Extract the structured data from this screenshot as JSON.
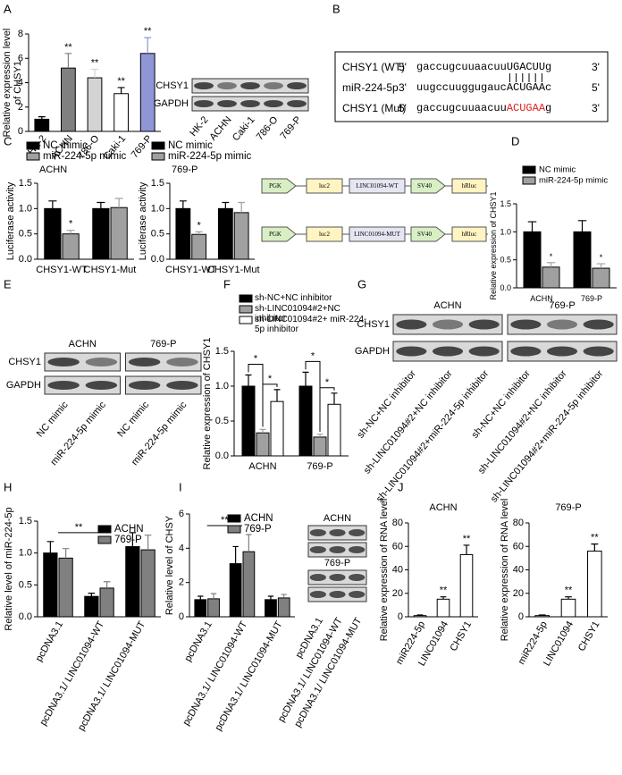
{
  "panel_labels": [
    "A",
    "B",
    "C",
    "D",
    "E",
    "F",
    "G",
    "H",
    "I",
    "J"
  ],
  "chart_data": [
    {
      "type": "bar",
      "ylabel": [
        "Relative expression level",
        "of CHSY1"
      ],
      "categories": [
        "HK-2",
        "ACHN",
        "786-O",
        "Caki-1",
        "769-P"
      ],
      "values": [
        1.0,
        5.2,
        4.4,
        3.1,
        6.4
      ],
      "errors": [
        0.2,
        1.2,
        0.7,
        0.5,
        1.3
      ],
      "colors": [
        "#000000",
        "#808080",
        "#d3d3d3",
        "#ffffff",
        "#8f96d8"
      ],
      "sig": [
        null,
        "**",
        "**",
        "**",
        "**"
      ],
      "ylim": [
        0,
        8
      ],
      "yticks": [
        0,
        2,
        4,
        6,
        8
      ]
    },
    {
      "type": "bar",
      "title": "ACHN",
      "ylabel": "Luciferase activity",
      "categories": [
        "CHSY1-WT",
        "CHSY1-Mut"
      ],
      "series": [
        {
          "name": "NC mimic",
          "color": "#000000",
          "values": [
            1.0,
            1.0
          ],
          "errors": [
            0.15,
            0.12
          ]
        },
        {
          "name": "miR-224-5p mimic",
          "color": "#a0a0a0",
          "values": [
            0.5,
            1.02
          ],
          "errors": [
            0.07,
            0.18
          ],
          "sig": [
            "*",
            null
          ]
        }
      ],
      "ylim": [
        0,
        1.5
      ],
      "yticks": [
        {
          "value": 0,
          "label": "0.0"
        },
        0.5,
        {
          "value": 1,
          "label": "1.0"
        },
        1.5
      ]
    },
    {
      "type": "bar",
      "title": "769-P",
      "ylabel": "Luciferase activity",
      "categories": [
        "CHSY1-WT",
        "CHSY1-Mut"
      ],
      "series": [
        {
          "name": "NC mimic",
          "color": "#000000",
          "values": [
            1.0,
            1.0
          ],
          "errors": [
            0.15,
            0.12
          ]
        },
        {
          "name": "miR-224-5p mimic",
          "color": "#a0a0a0",
          "values": [
            0.49,
            0.92
          ],
          "errors": [
            0.05,
            0.2
          ],
          "sig": [
            "*",
            null
          ]
        }
      ],
      "ylim": [
        0,
        1.5
      ],
      "yticks": [
        {
          "value": 0,
          "label": "0.0"
        },
        0.5,
        {
          "value": 1,
          "label": "1.0"
        },
        1.5
      ]
    },
    {
      "type": "bar",
      "ylabel": "Relative expression of CHSY1",
      "categories": [
        "ACHN",
        "769-P"
      ],
      "series": [
        {
          "name": "NC mimic",
          "color": "#000000",
          "values": [
            1.0,
            1.0
          ],
          "errors": [
            0.18,
            0.2
          ]
        },
        {
          "name": "miR-224-5p mimic",
          "color": "#a0a0a0",
          "values": [
            0.37,
            0.35
          ],
          "errors": [
            0.08,
            0.08
          ],
          "sig": [
            "*",
            "*"
          ]
        }
      ],
      "ylim": [
        0,
        1.5
      ],
      "yticks": [
        {
          "value": 0,
          "label": "0.0"
        },
        0.5,
        {
          "value": 1,
          "label": "1.0"
        },
        1.5
      ]
    },
    {
      "type": "bar",
      "ylabel": "Relative expression of CHSY1",
      "categories": [
        "ACHN",
        "769-P"
      ],
      "series": [
        {
          "name": "sh-NC+NC inhibitor",
          "color": "#000000",
          "values": [
            1.0,
            1.0
          ],
          "errors": [
            0.16,
            0.2
          ]
        },
        {
          "name": "sh-LINC01094#2+NC inhibitor",
          "color": "#a0a0a0",
          "values": [
            0.33,
            0.27
          ],
          "errors": [
            0.05,
            0.04
          ]
        },
        {
          "name": "sh-LINC01094#2+ miR-224-5p inhibitor",
          "color": "#ffffff",
          "values": [
            0.78,
            0.74
          ],
          "errors": [
            0.17,
            0.16
          ]
        }
      ],
      "brackets": [
        "*",
        "*",
        "*",
        "*"
      ],
      "ylim": [
        0,
        1.5
      ],
      "yticks": [
        {
          "value": 0,
          "label": "0.0"
        },
        0.5,
        {
          "value": 1,
          "label": "1.0"
        },
        1.5
      ]
    },
    {
      "type": "bar",
      "ylabel": "Relative level of miR-224-5p",
      "categories": [
        "pcDNA3.1",
        "pcDNA3.1/ LINC01094-WT",
        "pcDNA3.1/ LINC01094-MUT"
      ],
      "series": [
        {
          "name": "ACHN",
          "color": "#000000",
          "values": [
            1.0,
            0.32,
            1.1
          ],
          "errors": [
            0.18,
            0.05,
            0.22
          ]
        },
        {
          "name": "769-P",
          "color": "#808080",
          "values": [
            0.92,
            0.45,
            1.05
          ],
          "errors": [
            0.15,
            0.1,
            0.23
          ]
        }
      ],
      "bracket": "**",
      "ylim": [
        0,
        1.5
      ],
      "yticks": [
        {
          "value": 0,
          "label": "0.0"
        },
        0.5,
        {
          "value": 1,
          "label": "1.0"
        },
        1.5
      ]
    },
    {
      "type": "bar",
      "ylabel": "Relative level of CHSY",
      "categories": [
        "pcDNA3.1",
        "pcDNA3.1/ LINC01094-WT",
        "pcDNA3.1/ LINC01094-MUT"
      ],
      "series": [
        {
          "name": "ACHN",
          "color": "#000000",
          "values": [
            1.0,
            3.1,
            1.0
          ],
          "errors": [
            0.2,
            1.0,
            0.2
          ]
        },
        {
          "name": "769-P",
          "color": "#808080",
          "values": [
            1.05,
            3.8,
            1.1
          ],
          "errors": [
            0.3,
            1.0,
            0.2
          ]
        }
      ],
      "bracket": "**",
      "ylim": [
        0,
        6
      ],
      "yticks": [
        0,
        2,
        4,
        6
      ]
    },
    {
      "type": "bar",
      "title": "ACHN",
      "ylabel": "Relative expression of RNA level",
      "categories": [
        "miR224-5p",
        "LINC01094",
        "CHSY1"
      ],
      "values": [
        1,
        15,
        53
      ],
      "errors": [
        0.5,
        2,
        8
      ],
      "colors": [
        "#ffffff",
        "#ffffff",
        "#ffffff"
      ],
      "sig": [
        null,
        "**",
        "**"
      ],
      "ylim": [
        0,
        80
      ],
      "yticks": [
        0,
        20,
        40,
        60,
        80
      ]
    },
    {
      "type": "bar",
      "title": "769-P",
      "ylabel": "Relative expression of RNA level",
      "categories": [
        "miR224-5p",
        "LINC01094",
        "CHSY1"
      ],
      "values": [
        1,
        15,
        56
      ],
      "errors": [
        0.5,
        2,
        6
      ],
      "colors": [
        "#ffffff",
        "#ffffff",
        "#ffffff"
      ],
      "sig": [
        null,
        "**",
        "**"
      ],
      "ylim": [
        0,
        80
      ],
      "yticks": [
        0,
        20,
        40,
        60,
        80
      ]
    }
  ],
  "blots": [
    {
      "rows": [
        "CHSY1",
        "GAPDH"
      ],
      "lanes": [
        "HK-2",
        "ACHN",
        "Caki-1",
        "786-O",
        "769-P"
      ]
    },
    {
      "groups": [
        "ACHN",
        "769-P"
      ],
      "rows": [
        "CHSY1",
        "GAPDH"
      ],
      "lanes": [
        "NC mimic",
        "miR-224-5p mimic",
        "NC mimic",
        "miR-224-5p mimic"
      ]
    },
    {
      "groups": [
        "ACHN",
        "769-P"
      ],
      "rows": [
        "CHSY1",
        "GAPDH"
      ],
      "lanes": [
        "sh-NC+NC inhibitor",
        "sh-LINC01094#2+NC inhibitor",
        "sh-LINC01094#2+miR-224-5p inhibitor",
        "sh-NC+NC inhibitor",
        "sh-LINC01094#2+NC inhibitor",
        "sh-LINC01094#2+miR-224-5p inhibitor"
      ]
    },
    {
      "groups": [
        "ACHN",
        "769-P"
      ],
      "lanes": [
        "pcDNA3.1",
        "pcDNA3.1/ LINC01094-WT",
        "pcDNA3.1/ LINC01094-MUT"
      ]
    }
  ],
  "sequence": [
    {
      "name": "CHSY1 (WT)",
      "left": "5'",
      "seq": "gaccugcuuaacuu",
      "site": "UGACUU",
      "tail": "g",
      "right": "3'"
    },
    {
      "name": "miR-224-5p",
      "left": "3'",
      "seq": "uugccuuggugauc",
      "site": "ACUGAA",
      "tail": "c",
      "right": "5'"
    },
    {
      "name": "CHSY1 (Mut)",
      "left": "5'",
      "seq": "gaccugcuuaacuu",
      "site": "ACUGAA",
      "tail": "g",
      "right": "3'"
    }
  ],
  "constructs": [
    [
      "PGK",
      "luc2",
      "LINC01094-WT",
      "SV40",
      "hRluc"
    ],
    [
      "PGK",
      "luc2",
      "LINC01094-MUT",
      "SV40",
      "hRluc"
    ]
  ]
}
